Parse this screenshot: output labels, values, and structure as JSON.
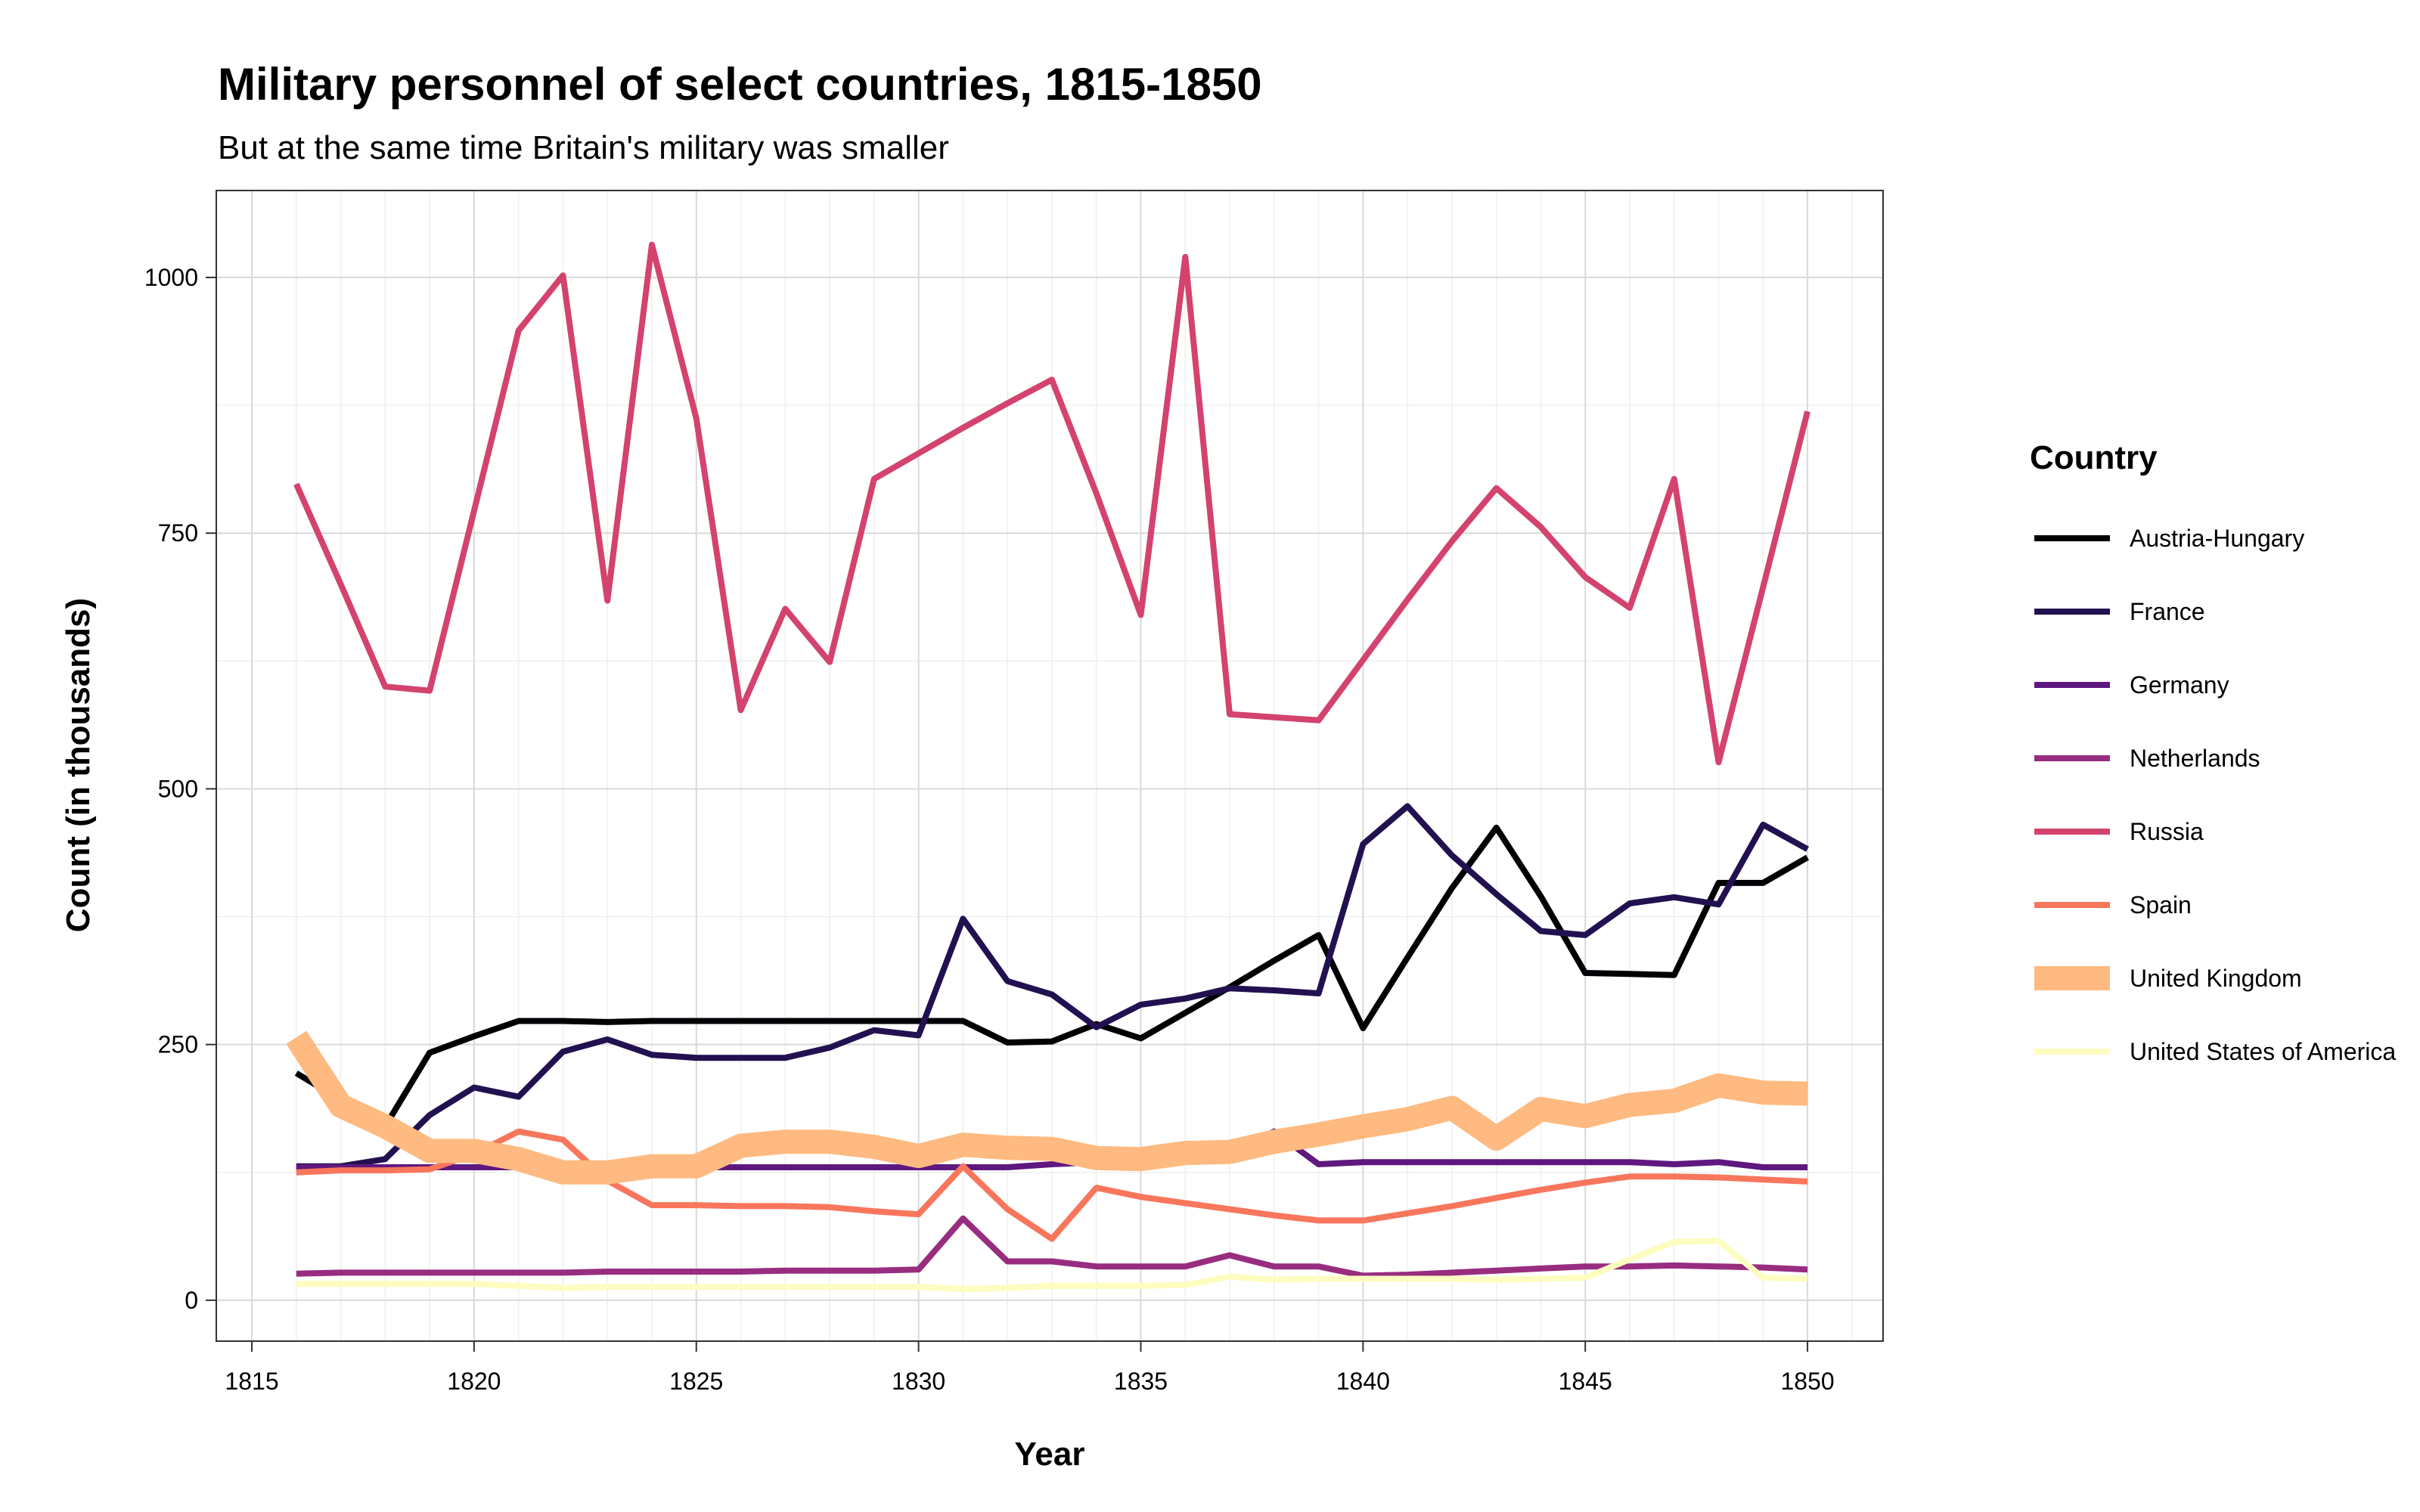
{
  "chart_data": {
    "type": "line",
    "title": "Military personnel of select countries, 1815-1850",
    "subtitle": "But at the same time Britain's military was smaller",
    "xlabel": "Year",
    "ylabel": "Count (in thousands)",
    "xlim": [
      1814.2,
      1851.7
    ],
    "ylim": [
      -40,
      1085
    ],
    "x_ticks": [
      1815,
      1820,
      1825,
      1830,
      1835,
      1840,
      1845,
      1850
    ],
    "y_ticks": [
      0,
      250,
      500,
      750,
      1000
    ],
    "grid": true,
    "legend": {
      "title": "Country",
      "position": "right"
    },
    "x": [
      1816,
      1817,
      1818,
      1819,
      1820,
      1821,
      1822,
      1823,
      1824,
      1825,
      1826,
      1827,
      1828,
      1829,
      1830,
      1831,
      1832,
      1833,
      1834,
      1835,
      1836,
      1837,
      1838,
      1839,
      1840,
      1841,
      1842,
      1843,
      1844,
      1845,
      1846,
      1847,
      1848,
      1849,
      1850
    ],
    "series": [
      {
        "name": "Austria-Hungary",
        "color": "#000004",
        "width": 8,
        "values": [
          222,
          196,
          170,
          242,
          258,
          273,
          273,
          272,
          273,
          273,
          273,
          273,
          273,
          273,
          273,
          273,
          252,
          253,
          270,
          256,
          281,
          306,
          332,
          357,
          266,
          335,
          403,
          462,
          395,
          320,
          319,
          318,
          408,
          408,
          433
        ]
      },
      {
        "name": "France",
        "color": "#221150",
        "width": 8,
        "values": [
          131,
          131,
          138,
          181,
          208,
          199,
          243,
          255,
          240,
          237,
          237,
          237,
          247,
          264,
          259,
          373,
          312,
          299,
          267,
          289,
          295,
          305,
          303,
          300,
          446,
          483,
          435,
          397,
          361,
          357,
          388,
          394,
          387,
          465,
          441
        ]
      },
      {
        "name": "Germany",
        "color": "#5F187F",
        "width": 8,
        "values": [
          130,
          130,
          130,
          130,
          130,
          130,
          130,
          130,
          130,
          130,
          130,
          130,
          130,
          130,
          130,
          130,
          130,
          133,
          135,
          138,
          140,
          143,
          165,
          133,
          135,
          135,
          135,
          135,
          135,
          135,
          135,
          133,
          135,
          130,
          130
        ]
      },
      {
        "name": "Netherlands",
        "color": "#982D80",
        "width": 8,
        "values": [
          26,
          27,
          27,
          27,
          27,
          27,
          27,
          28,
          28,
          28,
          28,
          29,
          29,
          29,
          30,
          80,
          38,
          38,
          33,
          33,
          33,
          44,
          33,
          33,
          24,
          25,
          27,
          29,
          31,
          33,
          33,
          34,
          33,
          32,
          30
        ]
      },
      {
        "name": "Russia",
        "color": "#D3436E",
        "width": 8,
        "values": [
          798,
          700,
          600,
          596,
          772,
          948,
          1002,
          684,
          1032,
          862,
          577,
          676,
          624,
          803,
          828,
          853,
          877,
          900,
          789,
          670,
          1020,
          573,
          570,
          567,
          626,
          685,
          742,
          794,
          756,
          707,
          677,
          803,
          526,
          697,
          869
        ]
      },
      {
        "name": "Spain",
        "color": "#F8765C",
        "width": 8,
        "values": [
          125,
          127,
          127,
          128,
          143,
          165,
          157,
          117,
          93,
          93,
          92,
          92,
          91,
          87,
          84,
          131,
          89,
          60,
          110,
          101,
          95,
          89,
          83,
          78,
          78,
          85,
          92,
          100,
          108,
          115,
          121,
          121,
          120,
          118,
          116
        ]
      },
      {
        "name": "United Kingdom",
        "color": "#FEBA80",
        "width": 32,
        "values": [
          257,
          190,
          170,
          146,
          146,
          138,
          125,
          125,
          131,
          131,
          151,
          155,
          155,
          150,
          141,
          152,
          149,
          148,
          139,
          138,
          144,
          145,
          155,
          162,
          170,
          177,
          188,
          158,
          187,
          180,
          191,
          195,
          210,
          203,
          202
        ]
      },
      {
        "name": "United States of America",
        "color": "#FCFDBF",
        "width": 8,
        "values": [
          16,
          16,
          16,
          16,
          16,
          14,
          12,
          13,
          13,
          13,
          13,
          13,
          13,
          13,
          13,
          11,
          12,
          14,
          14,
          14,
          15,
          23,
          20,
          21,
          21,
          21,
          21,
          20,
          21,
          22,
          40,
          57,
          58,
          22,
          21
        ]
      }
    ]
  }
}
